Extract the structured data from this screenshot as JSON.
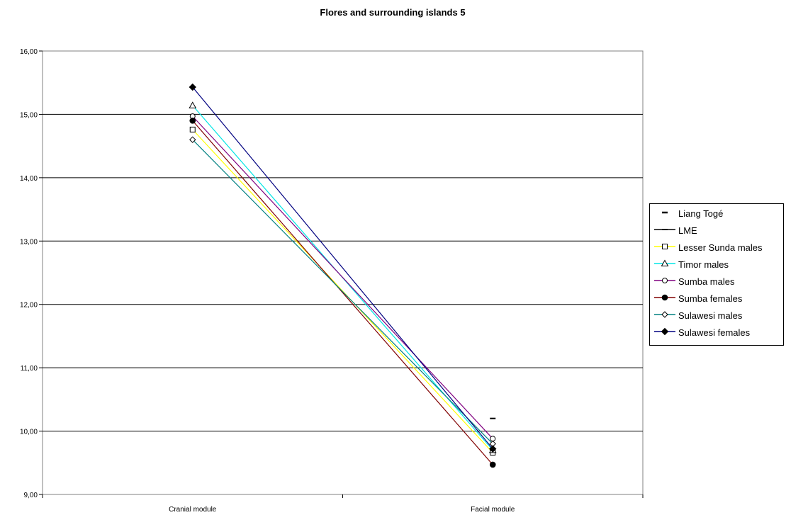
{
  "chart_data": {
    "type": "line",
    "title": "Flores and surrounding islands 5",
    "categories": [
      "Cranial module",
      "Facial module"
    ],
    "y_ticks": [
      "9,00",
      "10,00",
      "11,00",
      "12,00",
      "13,00",
      "14,00",
      "15,00",
      "16,00"
    ],
    "ylim": [
      9,
      16
    ],
    "grid": true,
    "legend_position": "right",
    "series": [
      {
        "name": "Liang Togé",
        "values": [
          null,
          null
        ],
        "color": "#000000",
        "marker": "dash"
      },
      {
        "name": "LME",
        "values": [
          null,
          10.2
        ],
        "color": "#000000",
        "marker": "dash"
      },
      {
        "name": "Lesser Sunda males",
        "values": [
          14.76,
          9.66
        ],
        "color": "#ffff00",
        "marker": "open-square"
      },
      {
        "name": "Timor males",
        "values": [
          15.14,
          9.7
        ],
        "color": "#00e5e5",
        "marker": "open-triangle"
      },
      {
        "name": "Sumba males",
        "values": [
          14.97,
          9.88
        ],
        "color": "#800080",
        "marker": "open-circle"
      },
      {
        "name": "Sumba females",
        "values": [
          14.9,
          9.47
        ],
        "color": "#800000",
        "marker": "filled-circle"
      },
      {
        "name": "Sulawesi males",
        "values": [
          14.6,
          9.8
        ],
        "color": "#008080",
        "marker": "open-diamond"
      },
      {
        "name": "Sulawesi females",
        "values": [
          15.43,
          9.72
        ],
        "color": "#000080",
        "marker": "filled-diamond"
      }
    ]
  }
}
